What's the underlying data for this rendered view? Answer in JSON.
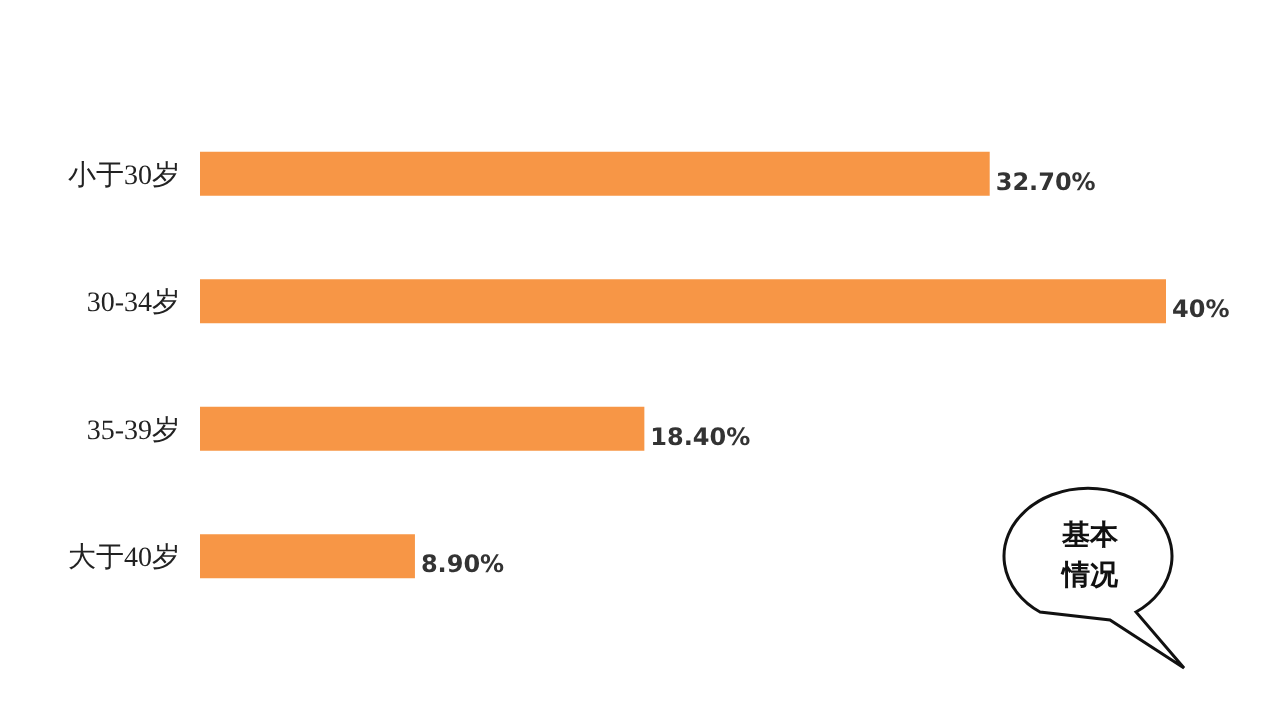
{
  "chart_data": {
    "type": "bar",
    "orientation": "horizontal",
    "categories": [
      "小于30岁",
      "30-34岁",
      "35-39岁",
      "大于40岁"
    ],
    "values": [
      32.7,
      40,
      18.4,
      8.9
    ],
    "value_labels": [
      "32.70%",
      "40%",
      "18.40%",
      "8.90%"
    ],
    "color": "#f79646",
    "annotations": [
      "基本情况"
    ]
  }
}
